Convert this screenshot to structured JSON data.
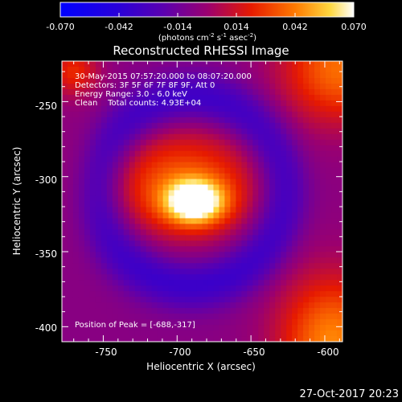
{
  "chart_data": {
    "type": "heatmap",
    "title": "Reconstructed RHESSI Image",
    "xlabel": "Heliocentric X (arcsec)",
    "ylabel": "Heliocentric Y (arcsec)",
    "x_ticks": [
      "-750",
      "-700",
      "-650",
      "-600"
    ],
    "y_ticks": [
      "-250",
      "-300",
      "-350",
      "-400"
    ],
    "xlim": [
      -778,
      -588
    ],
    "ylim": [
      -410,
      -223
    ],
    "colorbar": {
      "range": [
        -0.07,
        0.07
      ],
      "ticks": [
        "-0.070",
        "-0.042",
        "-0.014",
        "0.014",
        "0.042",
        "0.070"
      ],
      "units_prefix": "(photons cm",
      "units_exp1": "-2",
      "units_mid": " s",
      "units_exp2": "-1",
      "units_mid2": " asec",
      "units_exp3": "-2",
      "units_suffix": ")"
    },
    "annotations": [
      "30-May-2015 07:57:20.000 to 08:07:20.000",
      "Detectors: 3F 5F 6F 7F 8F 9F, Att 0",
      "Energy Range: 3.0 - 6.0 keV",
      "Clean    Total counts: 4.93E+04"
    ],
    "peak_label": "Position of Peak = [-688,-317]",
    "peak": {
      "x": -688,
      "y": -317
    },
    "sources": [
      {
        "x": -688,
        "y": -317,
        "amp": 0.074,
        "sx": 14,
        "sy": 10
      },
      {
        "x": -697,
        "y": -305,
        "amp": 0.04,
        "sx": 38,
        "sy": 26
      },
      {
        "x": -590,
        "y": -228,
        "amp": 0.045,
        "sx": 28,
        "sy": 26
      },
      {
        "x": -595,
        "y": -410,
        "amp": 0.05,
        "sx": 26,
        "sy": 32
      },
      {
        "x": -770,
        "y": -230,
        "amp": 0.03,
        "sx": 12,
        "sy": 12
      }
    ],
    "ring": {
      "x": -690,
      "y": -310,
      "radius": 62,
      "width": 12,
      "amp": -0.03
    }
  },
  "footer": {
    "date": "27-Oct-2017 20:23"
  }
}
